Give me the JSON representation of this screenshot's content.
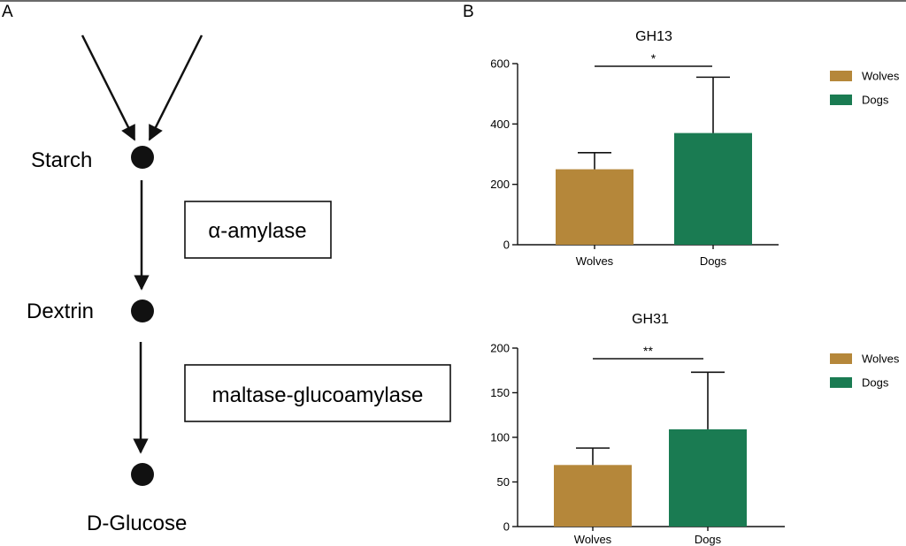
{
  "figure": {
    "panel_a_letter": "A",
    "panel_b_letter": "B"
  },
  "pathway": {
    "nodes": [
      "Starch",
      "Dextrin",
      "D-Glucose"
    ],
    "enzymes": [
      "α-amylase",
      "maltase-glucoamylase"
    ]
  },
  "colors": {
    "wolves": "#b5873a",
    "dogs": "#1a7b52",
    "ink": "#111111"
  },
  "chart_data": [
    {
      "type": "bar",
      "title": "GH13",
      "categories": [
        "Wolves",
        "Dogs"
      ],
      "values": [
        250,
        370
      ],
      "errors": [
        55,
        185
      ],
      "ylim": [
        0,
        600
      ],
      "yticks": [
        0,
        200,
        400,
        600
      ],
      "ytick_labels": [
        "0",
        "200",
        "400",
        "600"
      ],
      "xlabel": "",
      "ylabel": "",
      "legend": [
        "Wolves",
        "Dogs"
      ],
      "legend_position": "right",
      "significance": "*"
    },
    {
      "type": "bar",
      "title": "GH31",
      "categories": [
        "Wolves",
        "Dogs"
      ],
      "values": [
        69,
        109
      ],
      "errors": [
        19,
        64
      ],
      "ylim": [
        0,
        200
      ],
      "yticks": [
        0,
        50,
        100,
        150,
        200
      ],
      "ytick_labels": [
        "0",
        "50",
        "100",
        "150",
        "200"
      ],
      "xlabel": "",
      "ylabel": "",
      "legend": [
        "Wolves",
        "Dogs"
      ],
      "legend_position": "right",
      "significance": "**"
    }
  ]
}
